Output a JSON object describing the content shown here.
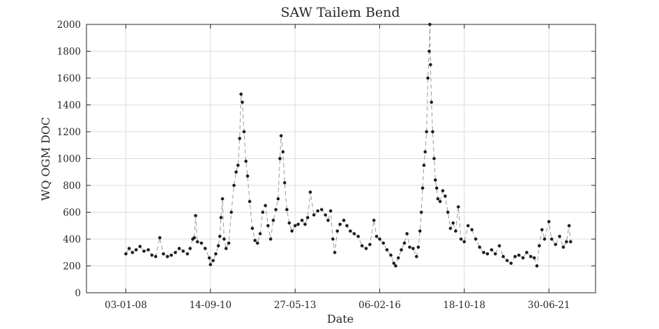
{
  "chart_data": {
    "type": "scatter",
    "title": "SAW Tailem Bend",
    "xlabel": "Date",
    "ylabel": "WQ OGM DOC",
    "x_axis_type": "date",
    "xlim": [
      "2006-10-01",
      "2022-12-25"
    ],
    "ylim": [
      0,
      2000
    ],
    "x_ticks": [
      "2008-01-03",
      "2010-09-14",
      "2013-05-27",
      "2016-02-06",
      "2018-10-18",
      "2021-06-30"
    ],
    "x_tick_labels": [
      "03-01-08",
      "14-09-10",
      "27-05-13",
      "06-02-16",
      "18-10-18",
      "30-06-21"
    ],
    "y_ticks": [
      0,
      200,
      400,
      600,
      800,
      1000,
      1200,
      1400,
      1600,
      1800,
      2000
    ],
    "y_tick_labels": [
      "0",
      "200",
      "400",
      "600",
      "800",
      "1000",
      "1200",
      "1400",
      "1600",
      "1800",
      "2000"
    ],
    "grid": true,
    "series": [
      {
        "marker_color": "#1a1a1a",
        "line_color": "#9a9a9a",
        "line_style": "dashed",
        "points": [
          [
            "2008-01-03",
            290
          ],
          [
            "2008-02-10",
            330
          ],
          [
            "2008-03-20",
            300
          ],
          [
            "2008-05-01",
            320
          ],
          [
            "2008-06-15",
            345
          ],
          [
            "2008-08-01",
            310
          ],
          [
            "2008-09-20",
            320
          ],
          [
            "2008-11-01",
            280
          ],
          [
            "2008-12-15",
            270
          ],
          [
            "2009-02-01",
            410
          ],
          [
            "2009-03-15",
            290
          ],
          [
            "2009-05-01",
            270
          ],
          [
            "2009-06-15",
            280
          ],
          [
            "2009-08-01",
            300
          ],
          [
            "2009-09-15",
            330
          ],
          [
            "2009-11-01",
            310
          ],
          [
            "2009-12-20",
            290
          ],
          [
            "2010-01-20",
            330
          ],
          [
            "2010-02-20",
            400
          ],
          [
            "2010-03-10",
            410
          ],
          [
            "2010-03-25",
            575
          ],
          [
            "2010-04-15",
            380
          ],
          [
            "2010-06-01",
            370
          ],
          [
            "2010-07-15",
            330
          ],
          [
            "2010-09-01",
            260
          ],
          [
            "2010-09-14",
            210
          ],
          [
            "2010-10-15",
            240
          ],
          [
            "2010-11-15",
            290
          ],
          [
            "2010-12-15",
            350
          ],
          [
            "2011-01-01",
            420
          ],
          [
            "2011-01-15",
            560
          ],
          [
            "2011-02-01",
            700
          ],
          [
            "2011-02-20",
            400
          ],
          [
            "2011-03-15",
            330
          ],
          [
            "2011-04-15",
            370
          ],
          [
            "2011-05-15",
            600
          ],
          [
            "2011-06-15",
            800
          ],
          [
            "2011-07-10",
            900
          ],
          [
            "2011-08-01",
            950
          ],
          [
            "2011-08-20",
            1150
          ],
          [
            "2011-09-05",
            1480
          ],
          [
            "2011-09-20",
            1420
          ],
          [
            "2011-10-10",
            1200
          ],
          [
            "2011-11-01",
            980
          ],
          [
            "2011-11-20",
            870
          ],
          [
            "2011-12-15",
            680
          ],
          [
            "2012-01-15",
            480
          ],
          [
            "2012-02-15",
            390
          ],
          [
            "2012-03-15",
            370
          ],
          [
            "2012-04-15",
            440
          ],
          [
            "2012-05-15",
            600
          ],
          [
            "2012-06-15",
            650
          ],
          [
            "2012-07-15",
            500
          ],
          [
            "2012-08-15",
            400
          ],
          [
            "2012-09-15",
            540
          ],
          [
            "2012-10-15",
            620
          ],
          [
            "2012-11-10",
            700
          ],
          [
            "2012-12-01",
            1000
          ],
          [
            "2012-12-15",
            1170
          ],
          [
            "2013-01-05",
            1050
          ],
          [
            "2013-01-25",
            820
          ],
          [
            "2013-02-20",
            620
          ],
          [
            "2013-03-20",
            520
          ],
          [
            "2013-04-20",
            460
          ],
          [
            "2013-05-27",
            500
          ],
          [
            "2013-07-01",
            510
          ],
          [
            "2013-08-15",
            540
          ],
          [
            "2013-09-20",
            510
          ],
          [
            "2013-10-20",
            560
          ],
          [
            "2013-11-20",
            750
          ],
          [
            "2014-01-01",
            580
          ],
          [
            "2014-02-15",
            610
          ],
          [
            "2014-04-01",
            620
          ],
          [
            "2014-05-15",
            580
          ],
          [
            "2014-06-15",
            540
          ],
          [
            "2014-07-15",
            610
          ],
          [
            "2014-08-10",
            400
          ],
          [
            "2014-09-01",
            300
          ],
          [
            "2014-10-01",
            460
          ],
          [
            "2014-11-01",
            510
          ],
          [
            "2014-12-15",
            540
          ],
          [
            "2015-01-20",
            500
          ],
          [
            "2015-03-01",
            460
          ],
          [
            "2015-04-15",
            440
          ],
          [
            "2015-06-01",
            420
          ],
          [
            "2015-07-15",
            350
          ],
          [
            "2015-09-01",
            330
          ],
          [
            "2015-10-15",
            360
          ],
          [
            "2015-12-01",
            540
          ],
          [
            "2016-01-01",
            420
          ],
          [
            "2016-02-06",
            400
          ],
          [
            "2016-03-20",
            370
          ],
          [
            "2016-05-01",
            320
          ],
          [
            "2016-06-15",
            280
          ],
          [
            "2016-07-20",
            220
          ],
          [
            "2016-08-10",
            200
          ],
          [
            "2016-09-10",
            260
          ],
          [
            "2016-10-15",
            320
          ],
          [
            "2016-11-20",
            370
          ],
          [
            "2016-12-20",
            440
          ],
          [
            "2017-01-20",
            340
          ],
          [
            "2017-03-01",
            330
          ],
          [
            "2017-04-10",
            270
          ],
          [
            "2017-05-01",
            340
          ],
          [
            "2017-05-20",
            460
          ],
          [
            "2017-06-05",
            600
          ],
          [
            "2017-06-20",
            780
          ],
          [
            "2017-07-05",
            950
          ],
          [
            "2017-07-20",
            1050
          ],
          [
            "2017-08-05",
            1200
          ],
          [
            "2017-08-20",
            1600
          ],
          [
            "2017-09-05",
            1800
          ],
          [
            "2017-09-12",
            2000
          ],
          [
            "2017-09-20",
            1700
          ],
          [
            "2017-10-01",
            1420
          ],
          [
            "2017-10-15",
            1200
          ],
          [
            "2017-11-01",
            1000
          ],
          [
            "2017-11-15",
            840
          ],
          [
            "2017-12-01",
            780
          ],
          [
            "2017-12-15",
            700
          ],
          [
            "2018-01-10",
            680
          ],
          [
            "2018-02-10",
            760
          ],
          [
            "2018-03-10",
            720
          ],
          [
            "2018-04-10",
            600
          ],
          [
            "2018-05-10",
            480
          ],
          [
            "2018-06-10",
            520
          ],
          [
            "2018-07-10",
            460
          ],
          [
            "2018-08-10",
            640
          ],
          [
            "2018-09-10",
            400
          ],
          [
            "2018-10-18",
            380
          ],
          [
            "2018-12-01",
            500
          ],
          [
            "2019-01-15",
            470
          ],
          [
            "2019-03-01",
            400
          ],
          [
            "2019-04-15",
            340
          ],
          [
            "2019-06-01",
            300
          ],
          [
            "2019-07-15",
            290
          ],
          [
            "2019-09-01",
            320
          ],
          [
            "2019-10-15",
            290
          ],
          [
            "2019-12-01",
            350
          ],
          [
            "2020-01-15",
            270
          ],
          [
            "2020-03-01",
            240
          ],
          [
            "2020-04-15",
            220
          ],
          [
            "2020-06-01",
            270
          ],
          [
            "2020-07-15",
            280
          ],
          [
            "2020-09-01",
            260
          ],
          [
            "2020-10-15",
            300
          ],
          [
            "2020-12-01",
            270
          ],
          [
            "2021-01-10",
            260
          ],
          [
            "2021-02-10",
            200
          ],
          [
            "2021-03-10",
            350
          ],
          [
            "2021-04-10",
            470
          ],
          [
            "2021-05-10",
            400
          ],
          [
            "2021-06-30",
            530
          ],
          [
            "2021-08-01",
            400
          ],
          [
            "2021-09-15",
            360
          ],
          [
            "2021-11-01",
            420
          ],
          [
            "2021-12-15",
            340
          ],
          [
            "2022-01-20",
            380
          ],
          [
            "2022-02-20",
            500
          ],
          [
            "2022-03-10",
            380
          ]
        ]
      }
    ]
  }
}
